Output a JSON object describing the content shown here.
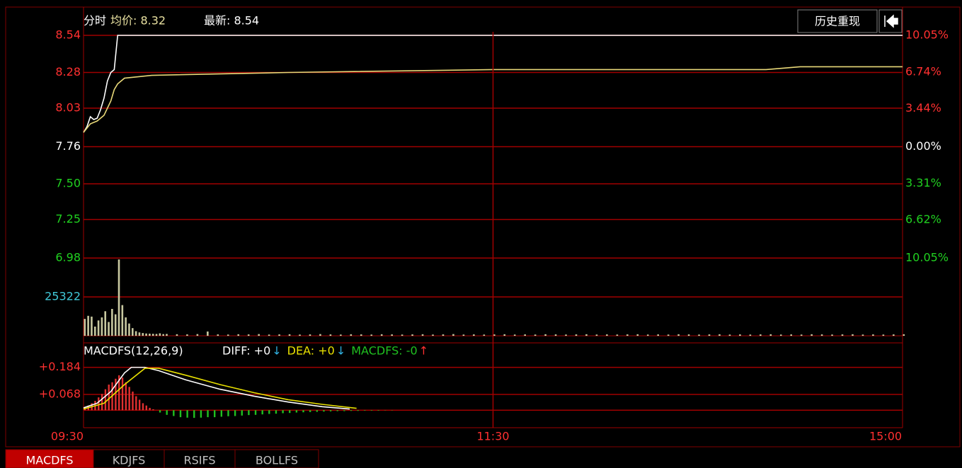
{
  "header": {
    "title": "分时",
    "avg": "均价: 8.32",
    "last": "最新: 8.54",
    "button": "历史重现"
  },
  "tabs": {
    "items": [
      "MACDFS",
      "KDJFS",
      "RSIFS",
      "BOLLFS"
    ],
    "active": 0
  },
  "chart_data": [
    {
      "type": "line",
      "xlim": [
        0,
        240
      ],
      "ylim": [
        6.98,
        8.54
      ],
      "yticks": [
        8.54,
        8.28,
        8.03,
        7.76,
        {
          "value": 7.5,
          "label": "7.50"
        },
        7.25,
        6.98
      ],
      "y2lim": [
        -10.05,
        10.05
      ],
      "y2ticks": [
        {
          "value": 10.05,
          "label": "10.05%"
        },
        {
          "value": 6.74,
          "label": "6.74%"
        },
        {
          "value": 3.44,
          "label": "3.44%"
        },
        {
          "value": 0,
          "label": "0.00%"
        },
        {
          "value": -3.31,
          "label": "3.31%"
        },
        {
          "value": -6.62,
          "label": "6.62%"
        },
        {
          "value": -10.05,
          "label": "10.05%"
        }
      ],
      "grid": true,
      "series": [
        {
          "color": "#ffffff",
          "x": [
            0,
            1,
            2,
            3,
            4,
            5,
            6,
            7,
            8,
            9,
            10,
            240
          ],
          "values": [
            7.86,
            7.9,
            7.97,
            7.95,
            7.96,
            8.02,
            8.1,
            8.22,
            8.28,
            8.3,
            8.54,
            8.54
          ]
        },
        {
          "color": "#e8d878",
          "x": [
            0,
            2,
            4,
            6,
            8,
            9,
            10,
            12,
            20,
            60,
            120,
            200,
            210,
            240
          ],
          "values": [
            7.86,
            7.92,
            7.94,
            7.98,
            8.08,
            8.16,
            8.2,
            8.24,
            8.26,
            8.28,
            8.3,
            8.3,
            8.32,
            8.32
          ]
        }
      ]
    },
    {
      "type": "bar",
      "xlim": [
        0,
        240
      ],
      "ylim": [
        0,
        50644
      ],
      "yticks": [
        25322
      ],
      "color": "#c8c8a0",
      "x": [
        0,
        1,
        2,
        3,
        4,
        5,
        6,
        7,
        8,
        9,
        10,
        11,
        12,
        13,
        14,
        15,
        16,
        17,
        18,
        19,
        20,
        21,
        22,
        23,
        24,
        27,
        30,
        33,
        36,
        39,
        42,
        45,
        48,
        51,
        54,
        57,
        60,
        63,
        66,
        69,
        72,
        75,
        78,
        81,
        84,
        87,
        90,
        93,
        96,
        99,
        102,
        105,
        108,
        111,
        114,
        117,
        120,
        123,
        126,
        129,
        132,
        135,
        138,
        141,
        144,
        147,
        150,
        153,
        156,
        159,
        162,
        165,
        168,
        171,
        174,
        177,
        180,
        183,
        186,
        189,
        192,
        195,
        198,
        201,
        204,
        207,
        210,
        213,
        216,
        219,
        222,
        225,
        228,
        231,
        234,
        237,
        240
      ],
      "values": [
        11000,
        13000,
        12500,
        6000,
        10000,
        12000,
        16000,
        9000,
        17500,
        14000,
        49700,
        20000,
        12000,
        8000,
        5000,
        3000,
        2200,
        1800,
        1500,
        1400,
        1300,
        1200,
        1600,
        1100,
        1200,
        1000,
        900,
        1100,
        2800,
        900,
        800,
        1000,
        900,
        1100,
        800,
        900,
        1000,
        800,
        900,
        1100,
        900,
        800,
        1000,
        900,
        800,
        1000,
        900,
        800,
        900,
        1000,
        800,
        900,
        1100,
        800,
        900,
        800,
        900,
        1000,
        800,
        900,
        800,
        1000,
        900,
        800,
        900,
        1000,
        800,
        900,
        800,
        900,
        1000,
        800,
        900,
        800,
        1000,
        900,
        800,
        900,
        1000,
        800,
        900,
        800,
        900,
        1000,
        800,
        900,
        800,
        1000,
        900,
        800,
        900,
        1000,
        800,
        900,
        800,
        900,
        1000
      ]
    },
    {
      "type": "macd",
      "title": "MACDFS(12,26,9)",
      "labels": [
        {
          "text": "DIFF: +0",
          "color": "#ffffff"
        },
        {
          "text": "↓",
          "color": "#30b0e0"
        },
        {
          "text": "DEA: +0",
          "color": "#e8e000"
        },
        {
          "text": "↓",
          "color": "#30b0e0"
        },
        {
          "text": "MACDFS: -0",
          "color": "#20c020"
        },
        {
          "text": "↑",
          "color": "#ff3030"
        }
      ],
      "xlim": [
        0,
        240
      ],
      "ylim": [
        -0.06,
        0.28
      ],
      "yticks": [
        {
          "value": 0.184,
          "label": "+0.184"
        },
        {
          "value": 0.068,
          "label": "+0.068"
        }
      ],
      "xticks": [
        {
          "value": 0,
          "label": "09:30"
        },
        {
          "value": 120,
          "label": "11:30"
        },
        {
          "value": 240,
          "label": "15:00"
        }
      ],
      "series": [
        {
          "color": "#ffffff",
          "x": [
            0,
            4,
            8,
            12,
            14,
            18,
            22,
            30,
            40,
            50,
            60,
            70,
            78
          ],
          "values": [
            0.01,
            0.03,
            0.08,
            0.16,
            0.184,
            0.184,
            0.17,
            0.13,
            0.09,
            0.06,
            0.035,
            0.015,
            0.005
          ]
        },
        {
          "color": "#e8e000",
          "x": [
            0,
            6,
            12,
            18,
            22,
            30,
            40,
            50,
            60,
            70,
            80
          ],
          "values": [
            0.005,
            0.03,
            0.11,
            0.18,
            0.18,
            0.15,
            0.11,
            0.075,
            0.045,
            0.025,
            0.008
          ]
        }
      ],
      "bars": {
        "up_color": "#e03030",
        "down_color": "#20c020",
        "x": [
          0,
          1,
          2,
          3,
          4,
          5,
          6,
          7,
          8,
          9,
          10,
          11,
          12,
          13,
          14,
          15,
          16,
          17,
          18,
          19,
          20,
          22,
          24,
          26,
          28,
          30,
          32,
          34,
          36,
          38,
          40,
          42,
          44,
          46,
          48,
          50,
          52,
          54,
          56,
          58,
          60,
          62,
          64,
          66,
          68,
          70,
          72,
          74,
          76,
          78,
          80,
          82,
          84,
          86,
          88,
          90
        ],
        "values": [
          0.01,
          0.02,
          0.03,
          0.04,
          0.055,
          0.07,
          0.09,
          0.11,
          0.12,
          0.135,
          0.15,
          0.14,
          0.12,
          0.1,
          0.08,
          0.06,
          0.045,
          0.03,
          0.02,
          0.01,
          0.004,
          -0.01,
          -0.02,
          -0.025,
          -0.03,
          -0.032,
          -0.033,
          -0.032,
          -0.03,
          -0.03,
          -0.028,
          -0.026,
          -0.025,
          -0.023,
          -0.021,
          -0.02,
          -0.018,
          -0.016,
          -0.015,
          -0.013,
          -0.012,
          -0.01,
          -0.009,
          -0.008,
          -0.007,
          -0.006,
          -0.005,
          -0.004,
          -0.004,
          -0.003,
          -0.003,
          -0.002,
          -0.002,
          -0.002,
          -0.001,
          -0.001
        ]
      }
    }
  ]
}
